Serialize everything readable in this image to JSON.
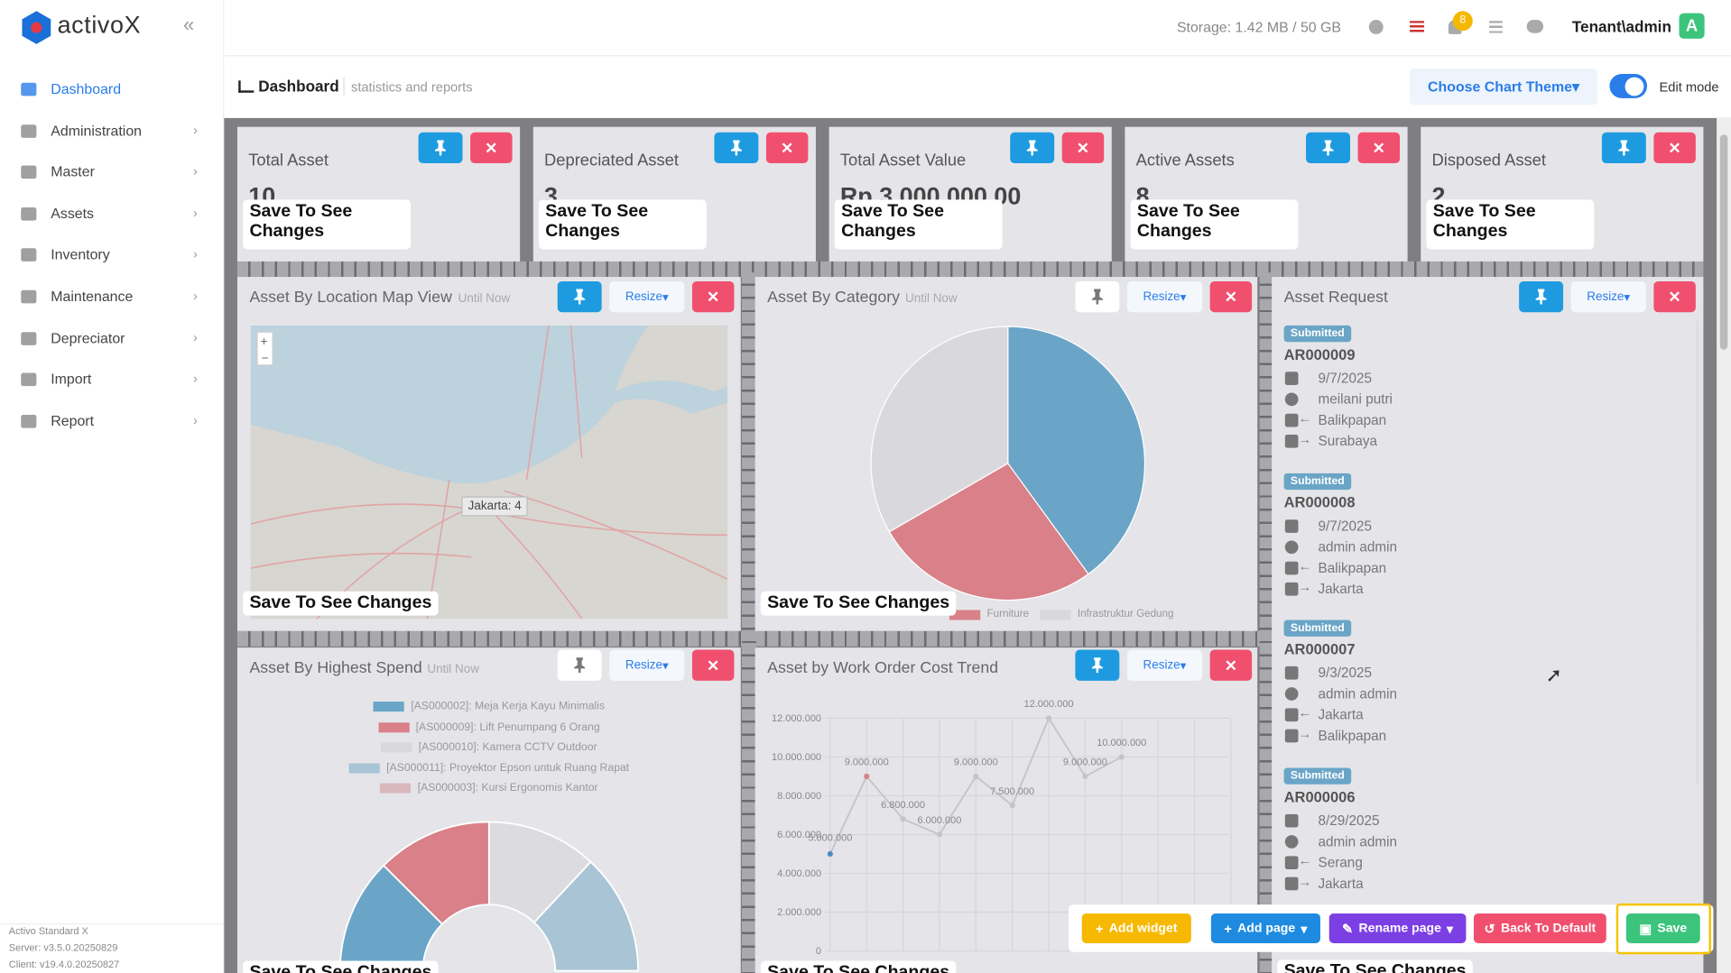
{
  "header": {
    "brand": "activoX",
    "storage": "Storage: 1.42 MB / 50 GB",
    "notifications": 8,
    "user": "Tenant\\admin",
    "avatar": "A"
  },
  "sidebar": {
    "menu": [
      "Dashboard",
      "Administration",
      "Master",
      "Assets",
      "Inventory",
      "Maintenance",
      "Depreciator",
      "Import",
      "Report"
    ],
    "footer": [
      "Activo Standard X",
      "Server: v3.5.0.20250829",
      "Client: v19.4.0.20250827"
    ]
  },
  "page": {
    "title": "Dashboard",
    "subtitle": "statistics and reports",
    "theme_button": "Choose Chart Theme",
    "edit_mode": "Edit mode"
  },
  "overlay_text": "Save To See Changes",
  "resize_label": "Resize",
  "until_now": "Until Now",
  "stat_cards": [
    {
      "title": "Total Asset",
      "value": 10
    },
    {
      "title": "Depreciated Asset",
      "value": 3
    },
    {
      "title": "Total Asset Value",
      "value": "Rp 3.000.000,00"
    },
    {
      "title": "Active Assets",
      "value": 8
    },
    {
      "title": "Disposed Asset",
      "value": 2
    }
  ],
  "map": {
    "title": "Asset By Location Map View",
    "marker": "Jakarta: 4"
  },
  "category": {
    "title": "Asset By Category",
    "legend": [
      "Furniture",
      "Infrastruktur Gedung"
    ]
  },
  "requests": {
    "title": "Asset Request",
    "items": [
      {
        "status": "Submitted",
        "id": "AR000009",
        "date": "9/7/2025",
        "user": "meilani putri",
        "from": "Balikpapan",
        "to": "Surabaya"
      },
      {
        "status": "Submitted",
        "id": "AR000008",
        "date": "9/7/2025",
        "user": "admin admin",
        "from": "Balikpapan",
        "to": "Jakarta"
      },
      {
        "status": "Submitted",
        "id": "AR000007",
        "date": "9/3/2025",
        "user": "admin admin",
        "from": "Jakarta",
        "to": "Balikpapan"
      },
      {
        "status": "Submitted",
        "id": "AR000006",
        "date": "8/29/2025",
        "user": "admin admin",
        "from": "Serang",
        "to": "Jakarta"
      }
    ]
  },
  "spend": {
    "title": "Asset By Highest Spend",
    "legend": [
      "[AS000002]: Meja Kerja Kayu Minimalis",
      "[AS000009]: Lift Penumpang 6 Orang",
      "[AS000010]: Kamera CCTV Outdoor",
      "[AS000011]: Proyektor Epson untuk Ruang Rapat",
      "[AS000003]: Kursi Ergonomis Kantor"
    ]
  },
  "trend": {
    "type": "line",
    "title": "Asset by Work Order Cost Trend",
    "ylim": [
      0,
      12000000
    ],
    "yticks": [
      0,
      {
        "value": 2000000,
        "label": "2.000.000"
      },
      {
        "value": 4000000,
        "label": "4.000.000"
      },
      {
        "value": 6000000,
        "label": "6.000.000"
      },
      {
        "value": 8000000,
        "label": "8.000.000"
      },
      {
        "value": 10000000,
        "label": "10.000.000"
      },
      {
        "value": 12000000,
        "label": "12.000.000"
      }
    ],
    "values": [
      5000000,
      9000000,
      6800000,
      6000000,
      9000000,
      7500000,
      12000000,
      9000000,
      10000000
    ],
    "value_labels": [
      "5.000.000",
      "9.000.000",
      "6.800.000",
      "6.000.000",
      "9.000.000",
      "7.500.000",
      "12.000.000",
      "9.000.000",
      "10.000.000"
    ],
    "color": "#c4c4c8"
  },
  "toolbar": [
    "Add widget",
    "Add page",
    "Rename page",
    "Back To Default",
    "Save"
  ]
}
